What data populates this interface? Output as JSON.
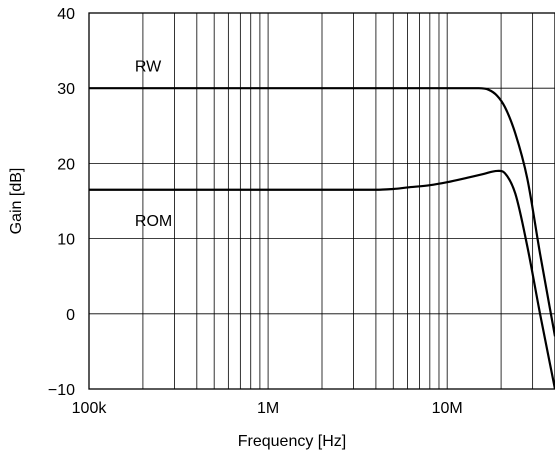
{
  "chart_data": {
    "type": "line",
    "xscale": "log",
    "xlim": [
      100000,
      40000000
    ],
    "ylim": [
      -10,
      40
    ],
    "grid": true,
    "xlabel": "Frequency [Hz]",
    "ylabel": "Gain [dB]",
    "xticks": [
      {
        "value": 100000,
        "label": "100k"
      },
      {
        "value": 1000000,
        "label": "1M"
      },
      {
        "value": 10000000,
        "label": "10M"
      }
    ],
    "yticks": [
      {
        "value": 40,
        "label": "40"
      },
      {
        "value": 30,
        "label": "30"
      },
      {
        "value": 20,
        "label": "20"
      },
      {
        "value": 10,
        "label": "10"
      },
      {
        "value": 0,
        "label": "0"
      },
      {
        "value": -10,
        "label": "−10"
      }
    ],
    "series": [
      {
        "name": "RW",
        "label_at": {
          "x": 200000,
          "y": 33
        },
        "x": [
          100000,
          1000000,
          10000000,
          15000000,
          17000000,
          19000000,
          21000000,
          24000000,
          28000000,
          33000000,
          40000000
        ],
        "y": [
          30,
          30,
          30,
          30,
          29.8,
          29,
          27.5,
          24,
          18,
          8,
          -3
        ]
      },
      {
        "name": "ROM",
        "label_at": {
          "x": 200000,
          "y": 12.5
        },
        "x": [
          100000,
          1000000,
          4000000,
          5000000,
          6000000,
          8000000,
          10000000,
          13000000,
          16000000,
          19000000,
          21000000,
          24000000,
          28000000,
          33000000,
          40000000
        ],
        "y": [
          16.5,
          16.5,
          16.5,
          16.6,
          16.8,
          17.1,
          17.5,
          18.1,
          18.6,
          19,
          18.7,
          16,
          9,
          0,
          -10
        ]
      }
    ]
  }
}
